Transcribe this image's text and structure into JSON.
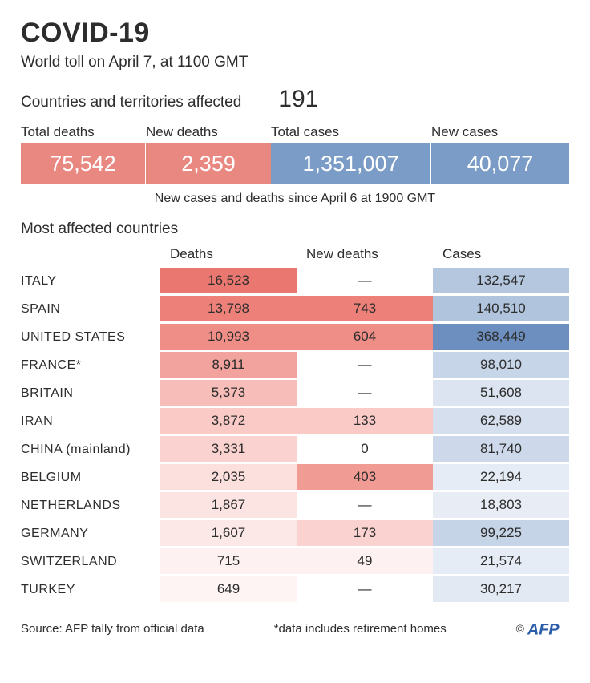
{
  "title": "COVID-19",
  "subtitle": "World toll on April 7, at 1100 GMT",
  "affected": {
    "label": "Countries and territories affected",
    "count": "191"
  },
  "colors": {
    "red": "#e88881",
    "blue": "#7a9cc6",
    "text": "#2d2d2d",
    "afp": "#2a5caa"
  },
  "stats": {
    "labels": [
      "Total deaths",
      "New deaths",
      "Total cases",
      "New cases"
    ],
    "values": [
      "75,542",
      "2,359",
      "1,351,007",
      "40,077"
    ],
    "box_colors": [
      "#e88881",
      "#e88881",
      "#7a9cc6",
      "#7a9cc6"
    ]
  },
  "note": "New  cases and deaths since April 6 at 1900 GMT",
  "section_label": "Most affected countries",
  "table": {
    "headers": [
      "Deaths",
      "New deaths",
      "Cases"
    ],
    "rows": [
      {
        "country": "ITALY",
        "deaths": "16,523",
        "new_deaths": "—",
        "cases": "132,547",
        "bg": [
          "#eb7870",
          "#ffffff",
          "#b4c7df"
        ]
      },
      {
        "country": "SPAIN",
        "deaths": "13,798",
        "new_deaths": "743",
        "cases": "140,510",
        "bg": [
          "#ed817a",
          "#ed817a",
          "#b0c4de"
        ]
      },
      {
        "country": "UNITED STATES",
        "deaths": "10,993",
        "new_deaths": "604",
        "cases": "368,449",
        "bg": [
          "#ef8e87",
          "#ef8e87",
          "#6c8fc0"
        ]
      },
      {
        "country": "FRANCE*",
        "deaths": "8,911",
        "new_deaths": "—",
        "cases": "98,010",
        "bg": [
          "#f3a39d",
          "#ffffff",
          "#c7d5e8"
        ]
      },
      {
        "country": "BRITAIN",
        "deaths": "5,373",
        "new_deaths": "—",
        "cases": "51,608",
        "bg": [
          "#f7bdb9",
          "#ffffff",
          "#dbe4f0"
        ]
      },
      {
        "country": "IRAN",
        "deaths": "3,872",
        "new_deaths": "133",
        "cases": "62,589",
        "bg": [
          "#f9cac6",
          "#f9cac6",
          "#d5dfee"
        ]
      },
      {
        "country": "CHINA (mainland)",
        "deaths": "3,331",
        "new_deaths": "0",
        "cases": "81,740",
        "bg": [
          "#fad2cf",
          "#ffffff",
          "#cdd9eb"
        ]
      },
      {
        "country": "BELGIUM",
        "deaths": "2,035",
        "new_deaths": "403",
        "cases": "22,194",
        "bg": [
          "#fbe0de",
          "#f19b95",
          "#e6ecf5"
        ]
      },
      {
        "country": "NETHERLANDS",
        "deaths": "1,867",
        "new_deaths": "—",
        "cases": "18,803",
        "bg": [
          "#fce4e2",
          "#ffffff",
          "#e8edf5"
        ]
      },
      {
        "country": "GERMANY",
        "deaths": "1,607",
        "new_deaths": "173",
        "cases": "99,225",
        "bg": [
          "#fce8e6",
          "#fad2cf",
          "#c6d4e7"
        ]
      },
      {
        "country": "SWITZERLAND",
        "deaths": "715",
        "new_deaths": "49",
        "cases": "21,574",
        "bg": [
          "#fdf2f1",
          "#fdf2f1",
          "#e6ecf5"
        ]
      },
      {
        "country": "TURKEY",
        "deaths": "649",
        "new_deaths": "—",
        "cases": "30,217",
        "bg": [
          "#fdf4f3",
          "#ffffff",
          "#e2e9f3"
        ]
      }
    ]
  },
  "footer": {
    "source": "Source: AFP tally from official data",
    "footnote": "*data includes retirement homes",
    "copyright": "©",
    "logo_text": "AFP"
  }
}
